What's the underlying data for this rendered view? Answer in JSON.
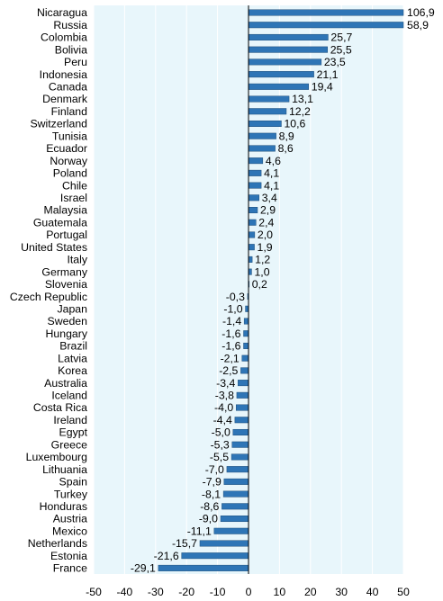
{
  "chart_data": {
    "type": "bar",
    "orientation": "horizontal",
    "xlim": [
      -50,
      50
    ],
    "x_ticks": [
      -50,
      -40,
      -30,
      -20,
      -10,
      0,
      10,
      20,
      30,
      40,
      50
    ],
    "grid": true,
    "decimal_separator": ",",
    "colors": {
      "bar": "#2e75b6",
      "bar_edge": "#1f4e79",
      "plot_background": "#e8f6fb",
      "grid": "#ffffff",
      "axis": "#000000"
    },
    "categories": [
      "Nicaragua",
      "Russia",
      "Colombia",
      "Bolivia",
      "Peru",
      "Indonesia",
      "Canada",
      "Denmark",
      "Finland",
      "Switzerland",
      "Tunisia",
      "Ecuador",
      "Norway",
      "Poland",
      "Chile",
      "Israel",
      "Malaysia",
      "Guatemala",
      "Portugal",
      "United States",
      "Italy",
      "Germany",
      "Slovenia",
      "Czech Republic",
      "Japan",
      "Sweden",
      "Hungary",
      "Brazil",
      "Latvia",
      "Korea",
      "Australia",
      "Iceland",
      "Costa Rica",
      "Ireland",
      "Egypt",
      "Greece",
      "Luxembourg",
      "Lithuania",
      "Spain",
      "Turkey",
      "Honduras",
      "Austria",
      "Mexico",
      "Netherlands",
      "Estonia",
      "France"
    ],
    "values": [
      106.9,
      58.9,
      25.7,
      25.5,
      23.5,
      21.1,
      19.4,
      13.1,
      12.2,
      10.6,
      8.9,
      8.6,
      4.6,
      4.1,
      4.1,
      3.4,
      2.9,
      2.4,
      2.0,
      1.9,
      1.2,
      1.0,
      0.2,
      -0.3,
      -1.0,
      -1.4,
      -1.6,
      -1.6,
      -2.1,
      -2.5,
      -3.4,
      -3.8,
      -4.0,
      -4.4,
      -5.0,
      -5.3,
      -5.5,
      -7.0,
      -7.9,
      -8.1,
      -8.6,
      -9.0,
      -11.1,
      -15.7,
      -21.6,
      -29.1
    ],
    "value_labels": [
      "106,9",
      "58,9",
      "25,7",
      "25,5",
      "23,5",
      "21,1",
      "19,4",
      "13,1",
      "12,2",
      "10,6",
      "8,9",
      "8,6",
      "4,6",
      "4,1",
      "4,1",
      "3,4",
      "2,9",
      "2,4",
      "2,0",
      "1,9",
      "1,2",
      "1,0",
      "0,2",
      "-0,3",
      "-1,0",
      "-1,4",
      "-1,6",
      "-1,6",
      "-2,1",
      "-2,5",
      "-3,4",
      "-3,8",
      "-4,0",
      "-4,4",
      "-5,0",
      "-5,3",
      "-5,5",
      "-7,0",
      "-7,9",
      "-8,1",
      "-8,6",
      "-9,0",
      "-11,1",
      "-15,7",
      "-21,6",
      "-29,1"
    ]
  }
}
